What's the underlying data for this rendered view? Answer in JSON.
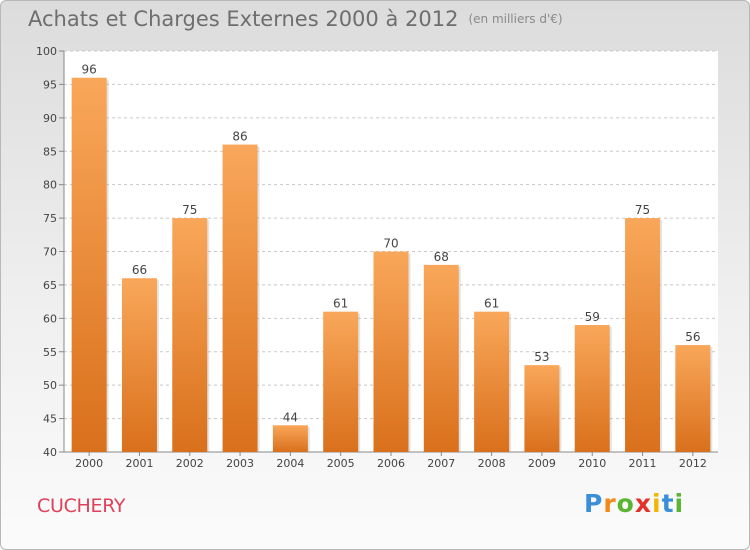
{
  "chart_data": {
    "type": "bar",
    "title": "Achats et Charges Externes 2000 à 2012",
    "subtitle": "(en milliers d'€)",
    "categories": [
      "2000",
      "2001",
      "2002",
      "2003",
      "2004",
      "2005",
      "2006",
      "2007",
      "2008",
      "2009",
      "2010",
      "2011",
      "2012"
    ],
    "values": [
      96,
      66,
      75,
      86,
      44,
      61,
      70,
      68,
      61,
      53,
      59,
      75,
      56
    ],
    "ylim": [
      40,
      100
    ],
    "yticks": [
      40,
      45,
      50,
      55,
      60,
      65,
      70,
      75,
      80,
      85,
      90,
      95,
      100
    ],
    "grid": "horizontal dashed",
    "bar_color": "#f59b45",
    "xlabel": "",
    "ylabel": ""
  },
  "city": "CUCHERY",
  "logo": {
    "letters": [
      "P",
      "r",
      "o",
      "x",
      "i",
      "t",
      "i"
    ],
    "colors": [
      "#3a8fd8",
      "#f28a1a",
      "#5cb531",
      "#e4312b",
      "#f2b705",
      "#3a8fd8",
      "#5cb531"
    ]
  }
}
